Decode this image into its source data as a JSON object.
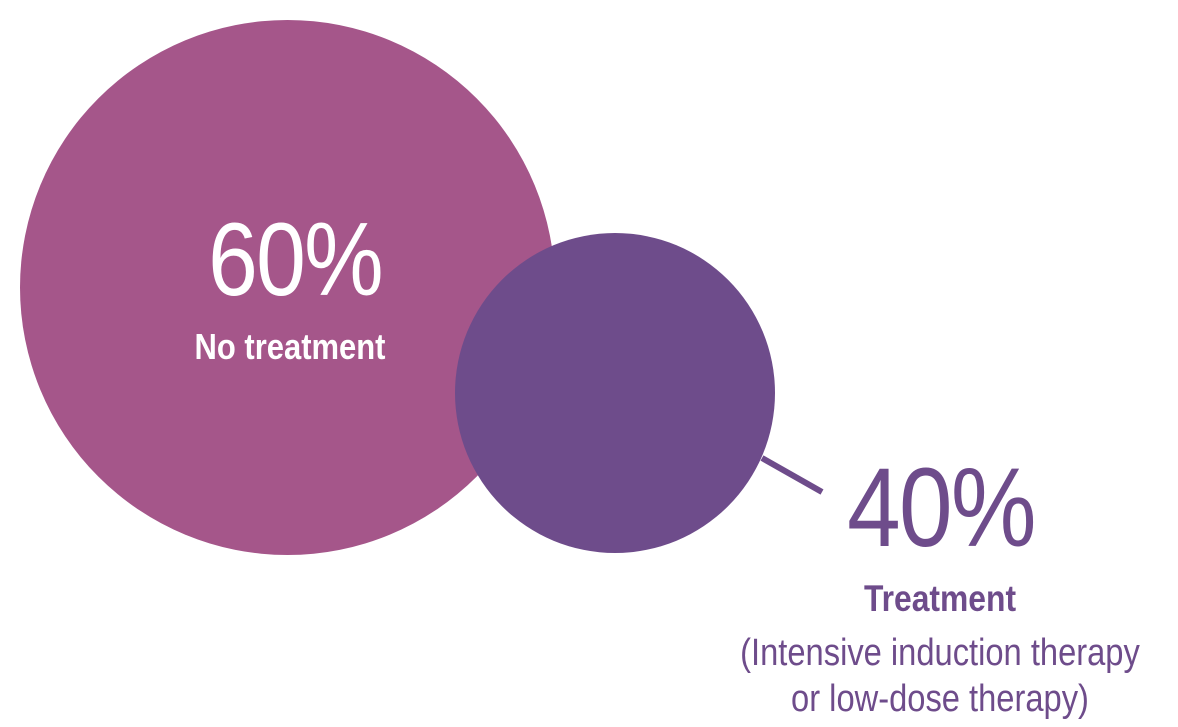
{
  "chart_data": {
    "type": "bubble",
    "series": [
      {
        "value": 60,
        "value_label": "60%",
        "label": "No treatment",
        "sublabel": "",
        "color": "#a5568a"
      },
      {
        "value": 40,
        "value_label": "40%",
        "label": "Treatment",
        "sublabel_line1": "(Intensive induction therapy",
        "sublabel_line2": "or low-dose therapy)",
        "color": "#6e4c8b"
      }
    ]
  }
}
